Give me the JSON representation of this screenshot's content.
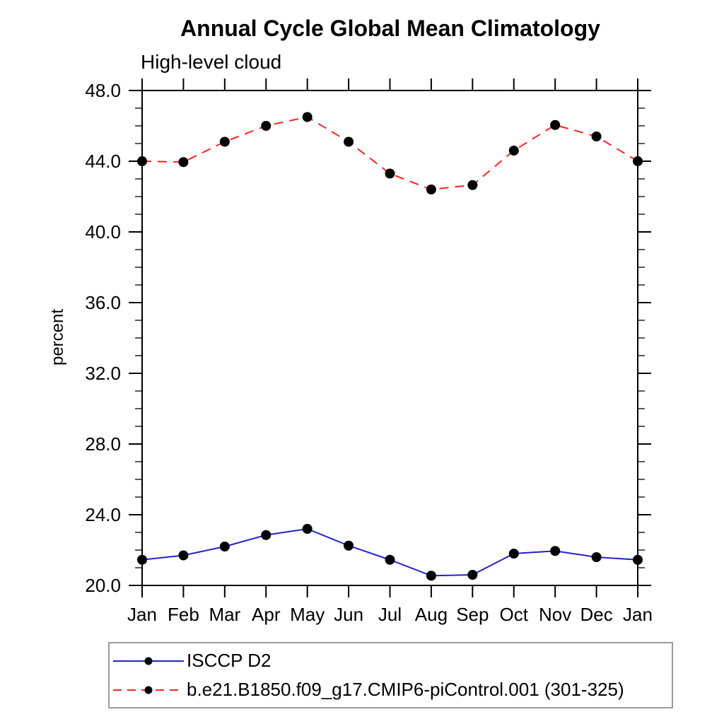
{
  "chart_data": {
    "type": "line",
    "title": "Annual Cycle Global Mean Climatology",
    "subtitle": "High-level cloud",
    "ylabel": "percent",
    "xlabel": "",
    "x_categories": [
      "Jan",
      "Feb",
      "Mar",
      "Apr",
      "May",
      "Jun",
      "Jul",
      "Aug",
      "Sep",
      "Oct",
      "Nov",
      "Dec",
      "Jan"
    ],
    "ylim": [
      20.0,
      48.0
    ],
    "ytick_major_values": [
      20,
      24,
      28,
      32,
      36,
      40,
      44,
      48
    ],
    "ytick_major_labels": [
      "20.0",
      "24.0",
      "28.0",
      "32.0",
      "36.0",
      "40.0",
      "44.0",
      "48.0"
    ],
    "ytick_minor_step": 1.0,
    "grid": false,
    "legend_position": "bottom-left-box",
    "axis_color": "#000000",
    "marker_color": "#000000",
    "series": [
      {
        "id": "isccp-d2",
        "name": "ISCCP D2",
        "color": "#2222cc",
        "line_style": "solid",
        "marker": "filled-circle",
        "values": [
          21.45,
          21.7,
          22.2,
          22.85,
          23.2,
          22.25,
          21.45,
          20.55,
          20.6,
          21.8,
          21.95,
          21.6,
          21.45
        ]
      },
      {
        "id": "cmip6-picontrol",
        "name": "b.e21.B1850.f09_g17.CMIP6-piControl.001 (301-325)",
        "color": "#ff2222",
        "line_style": "dashed",
        "marker": "filled-circle",
        "values": [
          44.0,
          43.95,
          45.1,
          46.0,
          46.5,
          45.1,
          43.3,
          42.4,
          42.65,
          44.6,
          46.05,
          45.4,
          44.0
        ]
      }
    ]
  }
}
